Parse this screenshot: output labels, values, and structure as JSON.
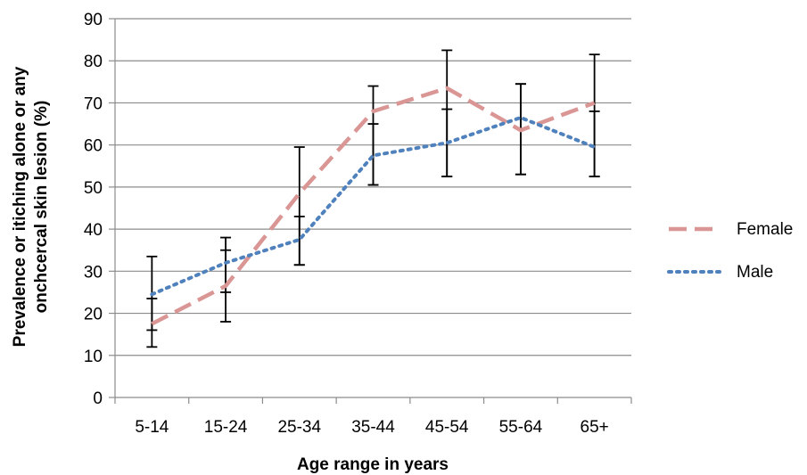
{
  "chart_data": {
    "type": "line",
    "title": "",
    "xlabel": "Age range in years",
    "ylabel_lines": [
      "Prevalence or itiching alone or any",
      "onchcercal skin lesion (%)"
    ],
    "categories": [
      "5-14",
      "15-24",
      "25-34",
      "35-44",
      "45-54",
      "55-64",
      "65+"
    ],
    "ylim": [
      0,
      90
    ],
    "yticks": [
      0,
      10,
      20,
      30,
      40,
      50,
      60,
      70,
      80,
      90
    ],
    "grid": true,
    "legend_position": "right",
    "series": [
      {
        "name": "Female",
        "color": "#d99694",
        "style": "dashed",
        "values": [
          17.5,
          26.5,
          48.5,
          68,
          73.5,
          63.5,
          70
        ],
        "error_low": [
          12,
          18,
          31.5,
          50.5,
          52.5,
          53,
          52.5
        ],
        "error_high": [
          23.5,
          35,
          59.5,
          74,
          82.5,
          74.5,
          81.5
        ]
      },
      {
        "name": "Male",
        "color": "#4f81bd",
        "style": "dotted",
        "values": [
          24.5,
          32,
          37.5,
          57.5,
          60.5,
          66.5,
          59.5
        ],
        "error_low": [
          16,
          25,
          31.5,
          50.5,
          52.5,
          53,
          52.5
        ],
        "error_high": [
          33.5,
          38,
          43,
          65,
          68.5,
          74.5,
          68
        ]
      }
    ]
  }
}
